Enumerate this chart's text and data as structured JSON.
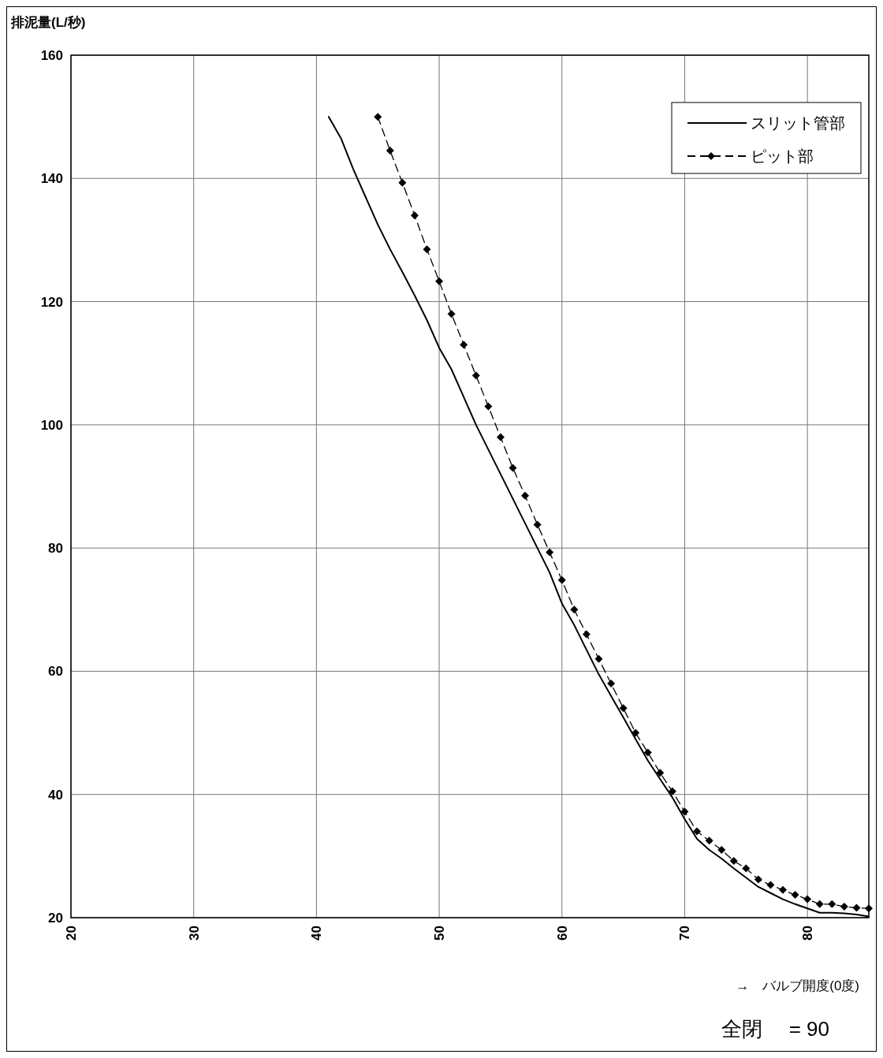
{
  "chart_data": {
    "type": "line",
    "ylabel": "排泥量(L/秒)",
    "xlabel": "→　バルブ開度(0度)",
    "annotations": [
      "全閉　 = 90"
    ],
    "xlim": [
      20,
      85
    ],
    "xticks": [
      20,
      30,
      40,
      50,
      60,
      70,
      80
    ],
    "ylim": [
      20,
      160
    ],
    "yticks": [
      20,
      40,
      60,
      80,
      100,
      120,
      140,
      160
    ],
    "grid": true,
    "legend": "top right",
    "series": [
      {
        "name": "スリット管部",
        "color": "#000000",
        "line_style": "solid",
        "marker": "none",
        "x": [
          41,
          42,
          43,
          44,
          45,
          46,
          47,
          48,
          49,
          50,
          51,
          52,
          53,
          54,
          55,
          56,
          57,
          58,
          59,
          60,
          61,
          62,
          63,
          64,
          65,
          66,
          67,
          68,
          69,
          70,
          71,
          72,
          73,
          74,
          75,
          76,
          77,
          78,
          79,
          80,
          81,
          82,
          83,
          84,
          85
        ],
        "values": [
          150,
          146.5,
          141.5,
          137,
          132.5,
          128.5,
          124.8,
          121,
          117,
          112.5,
          109,
          104.5,
          100,
          96,
          92,
          88,
          84,
          80,
          76,
          71,
          67.5,
          63.5,
          59.5,
          56,
          52.5,
          49,
          45.5,
          42.5,
          39.5,
          36,
          32.8,
          31,
          29.6,
          28,
          26.5,
          25,
          24,
          23,
          22.2,
          21.5,
          20.8,
          20.8,
          20.7,
          20.5,
          20.2
        ]
      },
      {
        "name": "ピット部",
        "color": "#000000",
        "line_style": "dashed",
        "marker": "diamond",
        "x": [
          45,
          46,
          47,
          48,
          49,
          50,
          51,
          52,
          53,
          54,
          55,
          56,
          57,
          58,
          59,
          60,
          61,
          62,
          63,
          64,
          65,
          66,
          67,
          68,
          69,
          70,
          71,
          72,
          73,
          74,
          75,
          76,
          77,
          78,
          79,
          80,
          81,
          82,
          83,
          84,
          85
        ],
        "values": [
          150,
          144.5,
          139.3,
          134,
          128.5,
          123.3,
          118,
          113,
          108,
          103,
          98,
          93,
          88.5,
          83.8,
          79.3,
          74.8,
          70,
          66,
          62,
          58,
          54,
          50,
          46.8,
          43.5,
          40.5,
          37.2,
          34,
          32.5,
          31,
          29.2,
          28,
          26.2,
          25.3,
          24.5,
          23.7,
          23,
          22.2,
          22.2,
          21.8,
          21.6,
          21.5
        ]
      }
    ]
  }
}
